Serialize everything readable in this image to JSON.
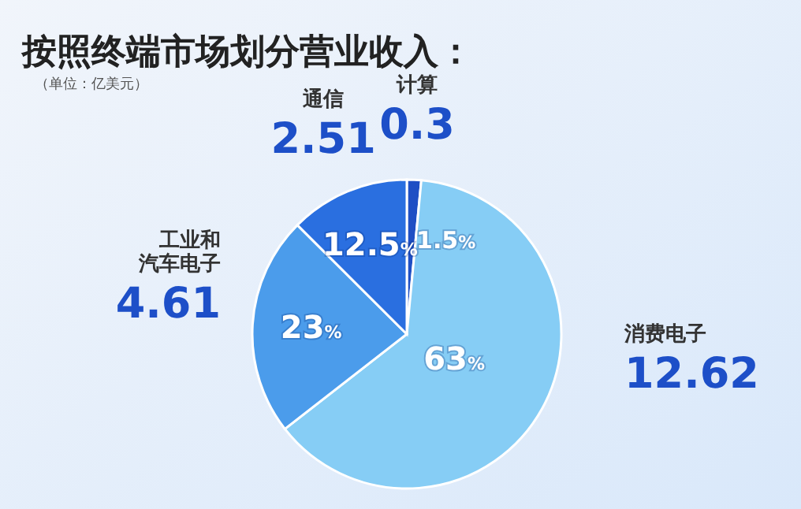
{
  "chart_data": {
    "type": "pie",
    "title": "按照终端市场划分营业收入：",
    "subtitle": "（单位：亿美元）",
    "categories": [
      "计算",
      "消费电子",
      "工业和汽车电子",
      "通信"
    ],
    "values": [
      0.3,
      12.62,
      4.61,
      2.51
    ],
    "colors": [
      "#1f4fc4",
      "#86cdf5",
      "#4b9ceb",
      "#2a6fe0"
    ],
    "annotations": [
      "1.5%",
      "63%",
      "23%",
      "12.5%"
    ],
    "data_labels": true
  }
}
